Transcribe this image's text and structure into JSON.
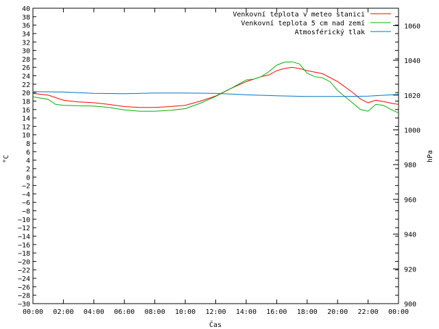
{
  "chart_data": {
    "type": "line",
    "title": "",
    "xlabel": "Čas",
    "ylabel": "°C",
    "y2label": "hPa",
    "x_ticks": [
      "00:00",
      "02:00",
      "04:00",
      "06:00",
      "08:00",
      "10:00",
      "12:00",
      "14:00",
      "16:00",
      "18:00",
      "20:00",
      "22:00",
      "00:00"
    ],
    "x_range_hours": [
      0,
      24
    ],
    "ylim": [
      -30,
      40
    ],
    "y_step": 2,
    "y2lim": [
      900,
      1070
    ],
    "y2_ticks": [
      900,
      920,
      940,
      960,
      980,
      1000,
      1020,
      1040,
      1060
    ],
    "grid": false,
    "legend_position": "top-right",
    "series": [
      {
        "name": "Venkovní teplota v meteo stanici",
        "axis": "left",
        "color": "#ff0000",
        "points": [
          [
            0,
            19.8
          ],
          [
            1,
            19.4
          ],
          [
            2,
            18.2
          ],
          [
            3,
            17.8
          ],
          [
            4,
            17.6
          ],
          [
            5,
            17.2
          ],
          [
            6,
            16.7
          ],
          [
            7,
            16.5
          ],
          [
            8,
            16.5
          ],
          [
            9,
            16.7
          ],
          [
            10,
            17.0
          ],
          [
            11,
            18.0
          ],
          [
            12,
            19.2
          ],
          [
            13,
            21.0
          ],
          [
            14,
            22.6
          ],
          [
            15,
            23.8
          ],
          [
            15.5,
            24.2
          ],
          [
            16,
            25.2
          ],
          [
            16.5,
            25.7
          ],
          [
            17,
            26.0
          ],
          [
            17.5,
            25.7
          ],
          [
            18,
            25.2
          ],
          [
            19,
            24.5
          ],
          [
            20,
            22.6
          ],
          [
            21,
            20.0
          ],
          [
            21.5,
            18.5
          ],
          [
            22,
            17.6
          ],
          [
            22.5,
            18.2
          ],
          [
            23,
            17.9
          ],
          [
            23.5,
            17.5
          ],
          [
            24,
            17.2
          ]
        ]
      },
      {
        "name": "Venkovní teplota 5 cm nad zemí",
        "axis": "left",
        "color": "#00b000",
        "points": [
          [
            0,
            19.0
          ],
          [
            1,
            18.4
          ],
          [
            1.5,
            17.2
          ],
          [
            2,
            17.0
          ],
          [
            3,
            16.9
          ],
          [
            4,
            16.8
          ],
          [
            5,
            16.5
          ],
          [
            6,
            15.9
          ],
          [
            7,
            15.6
          ],
          [
            8,
            15.6
          ],
          [
            9,
            15.8
          ],
          [
            10,
            16.2
          ],
          [
            11,
            17.5
          ],
          [
            12,
            19.1
          ],
          [
            13,
            21.0
          ],
          [
            13.5,
            22.0
          ],
          [
            14,
            23.0
          ],
          [
            14.5,
            23.2
          ],
          [
            15,
            23.8
          ],
          [
            15.5,
            25.0
          ],
          [
            16,
            26.5
          ],
          [
            16.5,
            27.2
          ],
          [
            17,
            27.3
          ],
          [
            17.5,
            26.8
          ],
          [
            18,
            24.6
          ],
          [
            18.5,
            23.8
          ],
          [
            19,
            23.5
          ],
          [
            19.5,
            22.6
          ],
          [
            20,
            20.5
          ],
          [
            21,
            17.5
          ],
          [
            21.5,
            16.0
          ],
          [
            22,
            15.6
          ],
          [
            22.5,
            17.2
          ],
          [
            23,
            17.0
          ],
          [
            23.5,
            16.0
          ],
          [
            24,
            15.2
          ]
        ]
      },
      {
        "name": "Atmosférický tlak",
        "axis": "right",
        "color": "#0070c0",
        "points": [
          [
            0,
            1022.0
          ],
          [
            2,
            1021.8
          ],
          [
            4,
            1021.0
          ],
          [
            6,
            1020.8
          ],
          [
            8,
            1021.2
          ],
          [
            10,
            1021.2
          ],
          [
            12,
            1021.0
          ],
          [
            13,
            1020.6
          ],
          [
            14,
            1020.2
          ],
          [
            16,
            1019.6
          ],
          [
            18,
            1019.2
          ],
          [
            20,
            1019.2
          ],
          [
            22,
            1019.4
          ],
          [
            24,
            1020.4
          ]
        ]
      }
    ]
  }
}
